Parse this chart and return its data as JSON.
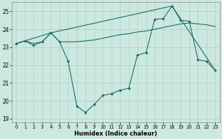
{
  "xlabel": "Humidex (Indice chaleur)",
  "ylabel": "",
  "xlim": [
    -0.5,
    23.5
  ],
  "ylim": [
    18.8,
    25.5
  ],
  "yticks": [
    19,
    20,
    21,
    22,
    23,
    24,
    25
  ],
  "xticks": [
    0,
    1,
    2,
    3,
    4,
    5,
    6,
    7,
    8,
    9,
    10,
    11,
    12,
    13,
    14,
    15,
    16,
    17,
    18,
    19,
    20,
    21,
    22,
    23
  ],
  "bg_color": "#cce8e0",
  "grid_color": "#aad0c8",
  "line_color": "#1a6e5e",
  "line1_y": [
    23.2,
    23.35,
    23.1,
    23.3,
    23.8,
    23.3,
    22.2,
    19.7,
    19.35,
    19.8,
    20.3,
    20.4,
    20.6,
    20.7,
    22.55,
    22.7,
    24.55,
    24.6,
    25.3,
    24.5,
    24.45,
    22.3,
    22.2,
    21.7
  ],
  "line2_y": [
    23.2,
    23.35,
    23.2,
    23.3,
    23.8,
    23.3,
    23.3,
    23.3,
    23.35,
    23.4,
    23.5,
    23.6,
    23.7,
    23.75,
    23.85,
    23.9,
    24.0,
    24.1,
    24.2,
    24.3,
    24.35,
    24.3,
    24.25,
    24.15
  ],
  "line3_x": [
    0,
    4,
    18,
    23
  ],
  "line3_y": [
    23.2,
    23.8,
    25.3,
    21.7
  ]
}
